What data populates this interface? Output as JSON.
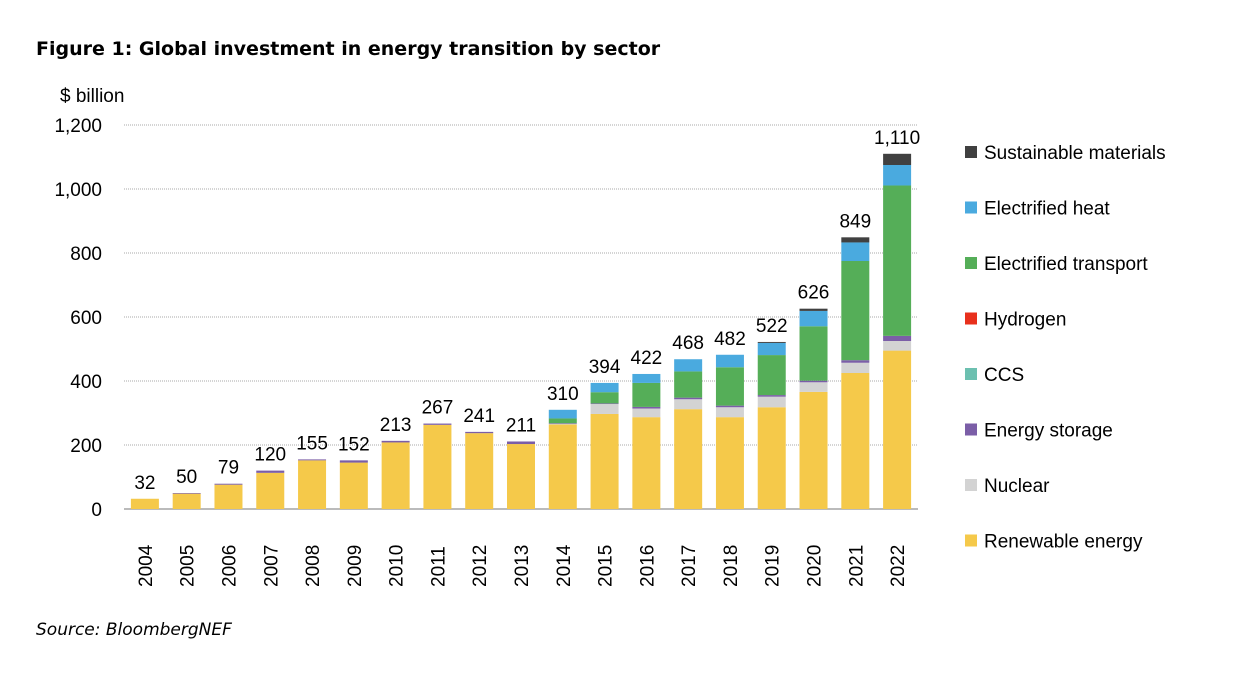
{
  "title": "Figure 1: Global investment in energy transition by sector",
  "source": "Source: BloombergNEF",
  "chart_data": {
    "type": "bar",
    "stacked": true,
    "ylabel": "$ billion",
    "ylim": [
      0,
      1200
    ],
    "yticks": [
      0,
      200,
      400,
      600,
      800,
      1000,
      1200
    ],
    "ytick_labels": [
      "0",
      "200",
      "400",
      "600",
      "800",
      "1,000",
      "1,200"
    ],
    "grid": true,
    "legend_position": "right",
    "categories": [
      "2004",
      "2005",
      "2006",
      "2007",
      "2008",
      "2009",
      "2010",
      "2011",
      "2012",
      "2013",
      "2014",
      "2015",
      "2016",
      "2017",
      "2018",
      "2019",
      "2020",
      "2021",
      "2022"
    ],
    "totals": [
      32,
      50,
      79,
      120,
      155,
      152,
      213,
      267,
      241,
      211,
      310,
      394,
      422,
      468,
      482,
      522,
      626,
      849,
      1110
    ],
    "total_labels": [
      "32",
      "50",
      "79",
      "120",
      "155",
      "152",
      "213",
      "267",
      "241",
      "211",
      "310",
      "394",
      "422",
      "468",
      "482",
      "522",
      "626",
      "849",
      "1,110"
    ],
    "series": [
      {
        "name": "Renewable energy",
        "color": "#F5C94A",
        "values": [
          32,
          48,
          76,
          113,
          152,
          145,
          208,
          263,
          237,
          203,
          264,
          297,
          287,
          312,
          287,
          318,
          366,
          425,
          495
        ]
      },
      {
        "name": "Nuclear",
        "color": "#D3D3D3",
        "values": [
          0,
          0,
          0,
          0,
          0,
          0,
          0,
          0,
          0,
          0,
          2,
          31,
          27,
          31,
          31,
          33,
          30,
          32,
          30
        ]
      },
      {
        "name": "Energy storage",
        "color": "#7B5EA7",
        "values": [
          0,
          2,
          3,
          7,
          3,
          7,
          5,
          4,
          4,
          8,
          2,
          2,
          5,
          5,
          5,
          5,
          5,
          8,
          16
        ]
      },
      {
        "name": "CCS",
        "color": "#6CC0B0",
        "values": [
          0,
          0,
          0,
          0,
          0,
          0,
          0,
          0,
          0,
          0,
          0,
          0,
          0,
          0,
          0,
          0,
          0,
          0,
          0
        ]
      },
      {
        "name": "Hydrogen",
        "color": "#E8301C",
        "values": [
          0,
          0,
          0,
          0,
          0,
          0,
          0,
          0,
          0,
          0,
          0,
          0,
          0,
          0,
          0,
          0,
          0,
          0,
          0
        ]
      },
      {
        "name": "Electrified transport",
        "color": "#55AE58",
        "values": [
          0,
          0,
          0,
          0,
          0,
          0,
          0,
          0,
          0,
          0,
          15,
          35,
          75,
          82,
          120,
          125,
          170,
          310,
          470
        ]
      },
      {
        "name": "Electrified heat",
        "color": "#4AAADF",
        "values": [
          0,
          0,
          0,
          0,
          0,
          0,
          0,
          0,
          0,
          0,
          27,
          29,
          28,
          38,
          39,
          38,
          48,
          58,
          64
        ]
      },
      {
        "name": "Sustainable materials",
        "color": "#404040",
        "values": [
          0,
          0,
          0,
          0,
          0,
          0,
          0,
          0,
          0,
          0,
          0,
          0,
          0,
          0,
          0,
          3,
          7,
          16,
          35
        ]
      }
    ],
    "legend_order": [
      "Sustainable materials",
      "Electrified heat",
      "Electrified transport",
      "Hydrogen",
      "CCS",
      "Energy storage",
      "Nuclear",
      "Renewable energy"
    ]
  }
}
